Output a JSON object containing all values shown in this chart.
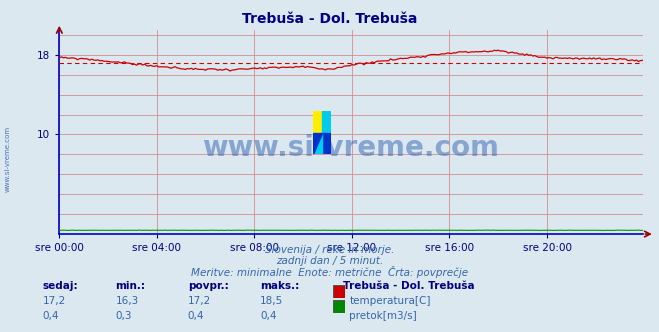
{
  "title": "Trebuša - Dol. Trebuša",
  "background_color": "#dce8f0",
  "plot_bg_color": "#dce8f0",
  "xlabel_ticks": [
    "sre 00:00",
    "sre 04:00",
    "sre 08:00",
    "sre 12:00",
    "sre 16:00",
    "sre 20:00"
  ],
  "ytick_labels": [
    "10",
    "18"
  ],
  "ytick_values": [
    10,
    18
  ],
  "ylim": [
    0,
    20.5
  ],
  "xlim": [
    0,
    287
  ],
  "grid_color": "#d09090",
  "grid_color_v": "#d09090",
  "subtitle_lines": [
    "Slovenija / reke in morje.",
    "zadnji dan / 5 minut.",
    "Meritve: minimalne  Enote: metrične  Črta: povprečje"
  ],
  "footer_headers": [
    "sedaj:",
    "min.:",
    "povpr.:",
    "maks.:"
  ],
  "footer_row1": [
    "17,2",
    "16,3",
    "17,2",
    "18,5"
  ],
  "footer_row2": [
    "0,4",
    "0,3",
    "0,4",
    "0,4"
  ],
  "legend_title": "Trebuša - Dol. Trebuša",
  "legend_items": [
    "temperatura[C]",
    "pretok[m3/s]"
  ],
  "legend_colors": [
    "#cc0000",
    "#008800"
  ],
  "temp_color": "#cc0000",
  "flow_color": "#009900",
  "avg_color": "#cc0000",
  "left_border_color": "#0000cc",
  "bottom_border_color": "#0000cc",
  "watermark": "www.si-vreme.com",
  "watermark_color": "#2255aa",
  "text_color_blue": "#3366aa",
  "text_color_dark": "#000080",
  "temp_avg": 17.2,
  "flow_avg": 0.4,
  "temp_min": 16.3,
  "temp_max": 18.5,
  "flow_min": 0.3,
  "flow_max": 0.4,
  "n_points": 288
}
